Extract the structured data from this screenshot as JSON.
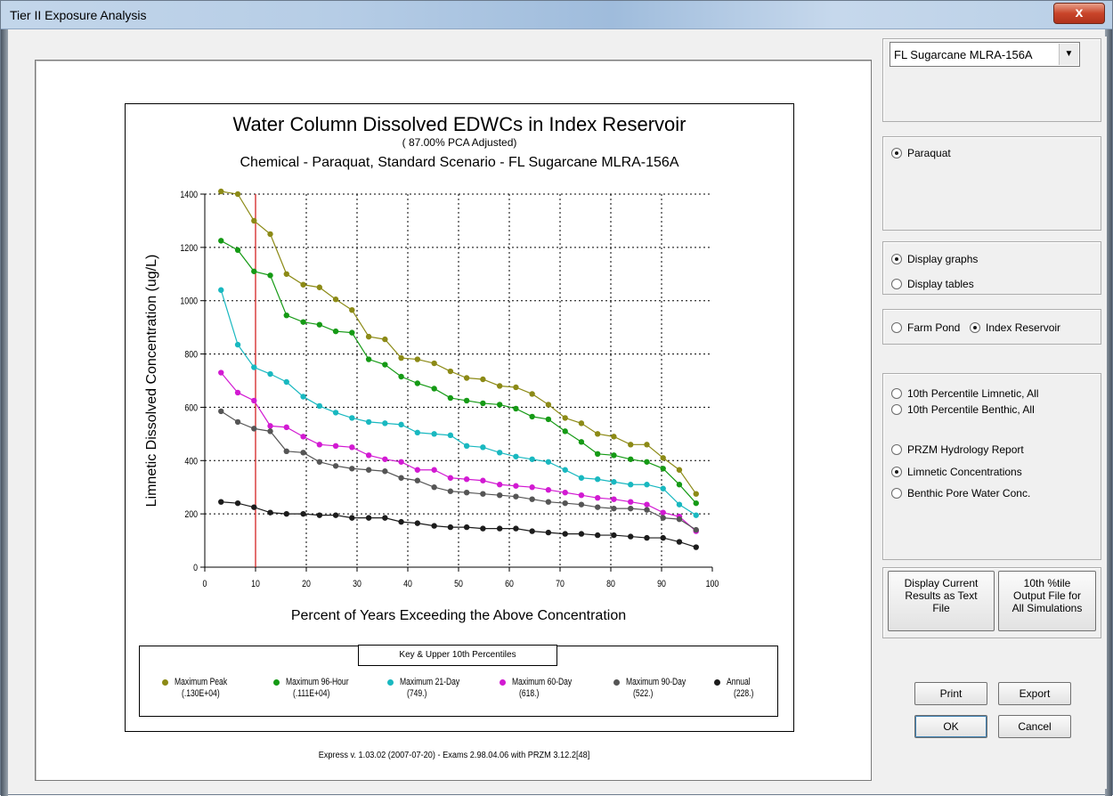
{
  "window": {
    "title": "Tier II Exposure Analysis",
    "close_label": "x"
  },
  "scenario_select": {
    "value": "FL Sugarcane   MLRA-156A"
  },
  "chemical_options": [
    {
      "label": "Paraquat",
      "selected": true
    }
  ],
  "display_options": [
    {
      "label": "Display graphs",
      "selected": true
    },
    {
      "label": "Display tables",
      "selected": false
    }
  ],
  "waterbody_options": [
    {
      "label": "Farm Pond",
      "selected": false
    },
    {
      "label": "Index Reservoir",
      "selected": true
    }
  ],
  "report_options": [
    {
      "label": "10th Percentile Limnetic, All",
      "selected": false
    },
    {
      "label": "10th Percentile Benthic, All",
      "selected": false
    },
    {
      "label": "PRZM Hydrology Report",
      "selected": false
    },
    {
      "label": "Limnetic Concentrations",
      "selected": true
    },
    {
      "label": "Benthic Pore Water Conc.",
      "selected": false
    }
  ],
  "buttons": {
    "display_text_l1": "Display Current",
    "display_text_l2": "Results as Text",
    "display_text_l3": "File",
    "tenth_l1": "10th %tile",
    "tenth_l2": "Output  File for",
    "tenth_l3": "All Simulations",
    "print": "Print",
    "export": "Export",
    "ok": "OK",
    "cancel": "Cancel"
  },
  "footer": "Express   v. 1.03.02   (2007-07-20) - Exams 2.98.04.06 with PRZM 3.12.2[48]",
  "chart_data": {
    "type": "line",
    "title": "Water Column Dissolved EDWCs in Index Reservoir",
    "subtitle": "( 87.00% PCA Adjusted)",
    "subtitle2": "Chemical - Paraquat,  Standard Scenario - FL Sugarcane   MLRA-156A",
    "xlabel": "Percent of Years Exceeding the Above Concentration",
    "ylabel": "Limnetic Dissolved Concentration (ug/L)",
    "xlim": [
      0,
      100
    ],
    "ylim": [
      0,
      1400
    ],
    "x_ticks": [
      "0",
      "10",
      "20",
      "30",
      "40",
      "50",
      "60",
      "70",
      "80",
      "90",
      "100"
    ],
    "y_ticks": [
      "0",
      "200",
      "400",
      "600",
      "800",
      "1000",
      "1200",
      "1400"
    ],
    "grid": true,
    "reference_line_x": 10,
    "legend_title": "Key & Upper 10th Percentiles",
    "x": [
      3.2,
      6.5,
      9.7,
      12.9,
      16.1,
      19.4,
      22.6,
      25.8,
      29.0,
      32.3,
      35.5,
      38.7,
      41.9,
      45.2,
      48.4,
      51.6,
      54.8,
      58.1,
      61.3,
      64.5,
      67.7,
      71.0,
      74.2,
      77.4,
      80.6,
      83.9,
      87.1,
      90.3,
      93.5,
      96.8
    ],
    "series": [
      {
        "name": "Maximum Peak",
        "value_label": "(.130E+04)",
        "color": "#8c8a16",
        "values": [
          1410,
          1400,
          1300,
          1250,
          1100,
          1060,
          1050,
          1005,
          965,
          865,
          855,
          785,
          780,
          765,
          735,
          710,
          705,
          680,
          675,
          650,
          610,
          560,
          540,
          500,
          490,
          460,
          460,
          410,
          365,
          275
        ]
      },
      {
        "name": "Maximum 96-Hour",
        "value_label": "(.111E+04)",
        "color": "#159a15",
        "values": [
          1225,
          1190,
          1110,
          1095,
          945,
          920,
          910,
          885,
          880,
          780,
          760,
          715,
          690,
          670,
          635,
          625,
          615,
          610,
          595,
          565,
          555,
          510,
          470,
          425,
          420,
          405,
          395,
          370,
          310,
          240
        ]
      },
      {
        "name": "Maximum 21-Day",
        "value_label": "(749.)",
        "color": "#19b8c0",
        "values": [
          1040,
          835,
          750,
          725,
          695,
          640,
          605,
          580,
          560,
          545,
          540,
          535,
          505,
          500,
          495,
          455,
          450,
          430,
          415,
          405,
          395,
          365,
          335,
          330,
          320,
          310,
          310,
          295,
          235,
          195
        ]
      },
      {
        "name": "Maximum 60-Day",
        "value_label": "(618.)",
        "color": "#d21ad2",
        "values": [
          730,
          655,
          625,
          530,
          525,
          490,
          460,
          455,
          450,
          420,
          405,
          395,
          365,
          365,
          335,
          330,
          325,
          310,
          305,
          300,
          290,
          280,
          270,
          260,
          255,
          245,
          235,
          205,
          190,
          135
        ]
      },
      {
        "name": "Maximum 90-Day",
        "value_label": "(522.)",
        "color": "#555555",
        "values": [
          585,
          545,
          520,
          510,
          435,
          430,
          395,
          380,
          370,
          365,
          360,
          335,
          325,
          300,
          285,
          280,
          275,
          270,
          265,
          255,
          245,
          240,
          235,
          225,
          220,
          220,
          215,
          185,
          180,
          140
        ]
      },
      {
        "name": "Annual",
        "value_label": "(228.)",
        "color": "#1c1c1c",
        "values": [
          245,
          240,
          225,
          205,
          200,
          200,
          195,
          195,
          185,
          185,
          185,
          170,
          165,
          155,
          150,
          150,
          145,
          145,
          145,
          135,
          130,
          125,
          125,
          120,
          120,
          115,
          110,
          110,
          95,
          75
        ]
      }
    ]
  }
}
